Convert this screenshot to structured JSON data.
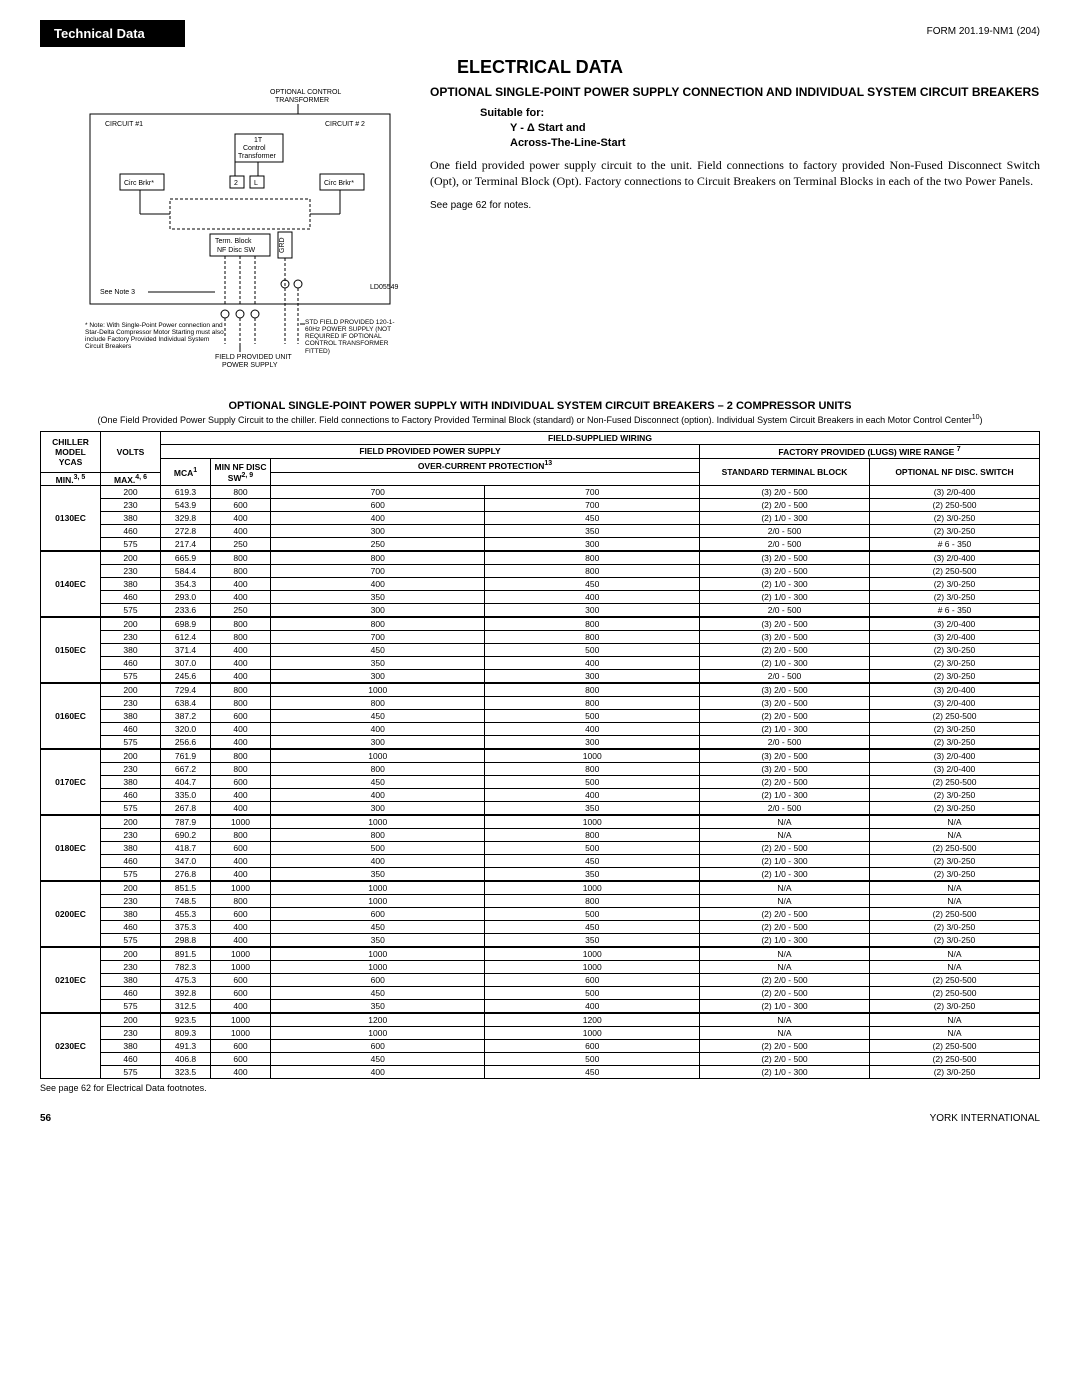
{
  "header": {
    "badge": "Technical Data",
    "form_no": "FORM 201.19-NM1 (204)"
  },
  "page_title": "ELECTRICAL DATA",
  "diagram": {
    "optional_ctrl": "OPTIONAL CONTROL\nTRANSFORMER",
    "circuit1": "CIRCUIT #1",
    "circuit2": "CIRCUIT # 2",
    "ctrl_trans": "1T\nControl\nTransformer",
    "circ_brkr": "Circ Brkr*",
    "term_block": "Term. Block\nNF Disc SW",
    "grd": "GRD",
    "see_note3": "See Note 3",
    "ld": "LD05549",
    "note_star": "* Note: With Single-Point Power connection and Star-Delta Compressor Motor Starting must also include Factory Provided Individual System Circuit Breakers",
    "field_unit": "FIELD PROVIDED UNIT\nPOWER SUPPLY",
    "std_field": "STD FIELD PROVIDED 120-1-60Hz POWER SUPPLY (NOT REQUIRED IF OPTIONAL CONTROL TRANSFORMER FITTED)",
    "num2": "2",
    "numL": "L"
  },
  "section": {
    "title": "OPTIONAL SINGLE-POINT POWER SUPPLY CONNECTION AND INDIVIDUAL SYSTEM CIRCUIT BREAKERS",
    "suitable": "Suitable for:",
    "y_start": "Y - Δ Start and",
    "atl": "Across-The-Line-Start",
    "body": "One field provided power supply circuit to the unit. Field connections to factory provided Non-Fused Disconnect Switch (Opt), or Terminal Block (Opt). Factory connections to Circuit Breakers on Terminal Blocks in each of the two Power Panels.",
    "see_page": "See page 62 for notes."
  },
  "table": {
    "title": "OPTIONAL SINGLE-POINT POWER SUPPLY WITH INDIVIDUAL SYSTEM CIRCUIT BREAKERS – 2 COMPRESSOR UNITS",
    "sub": "(One Field Provided Power Supply Circuit to the chiller. Field connections to Factory Provided Terminal Block (standard) or Non-Fused Disconnect (option). Individual System Circuit Breakers in each Motor Control Center",
    "sup10": "10",
    "headers": {
      "chiller": "CHILLER MODEL YCAS",
      "volts": "VOLTS",
      "fsw": "FIELD-SUPPLIED WIRING",
      "fpps": "FIELD PROVIDED POWER SUPPLY",
      "lugs": "FACTORY PROVIDED (LUGS) WIRE RANGE",
      "lugs_sup": "7",
      "mca": "MCA",
      "mca_sup": "1",
      "minnf": "MIN NF DISC SW",
      "minnf_sup": "2, 9",
      "ocp": "OVER-CURRENT PROTECTION",
      "ocp_sup": "13",
      "min": "MIN.",
      "min_sup": "3, 5",
      "max": "MAX.",
      "max_sup": "4, 6",
      "std_tb": "STANDARD TERMINAL BLOCK",
      "opt_nf": "OPTIONAL NF DISC. SWITCH"
    },
    "models": [
      {
        "model": "0130EC",
        "rows": [
          [
            "200",
            "619.3",
            "800",
            "700",
            "700",
            "(3) 2/0 - 500",
            "(3) 2/0-400"
          ],
          [
            "230",
            "543.9",
            "600",
            "600",
            "700",
            "(2) 2/0 - 500",
            "(2) 250-500"
          ],
          [
            "380",
            "329.8",
            "400",
            "400",
            "450",
            "(2) 1/0 - 300",
            "(2) 3/0-250"
          ],
          [
            "460",
            "272.8",
            "400",
            "300",
            "350",
            "2/0 - 500",
            "(2) 3/0-250"
          ],
          [
            "575",
            "217.4",
            "250",
            "250",
            "300",
            "2/0 - 500",
            "# 6 - 350"
          ]
        ]
      },
      {
        "model": "0140EC",
        "rows": [
          [
            "200",
            "665.9",
            "800",
            "800",
            "800",
            "(3) 2/0 - 500",
            "(3) 2/0-400"
          ],
          [
            "230",
            "584.4",
            "800",
            "700",
            "800",
            "(3) 2/0 - 500",
            "(2) 250-500"
          ],
          [
            "380",
            "354.3",
            "400",
            "400",
            "450",
            "(2) 1/0 - 300",
            "(2) 3/0-250"
          ],
          [
            "460",
            "293.0",
            "400",
            "350",
            "400",
            "(2) 1/0 - 300",
            "(2) 3/0-250"
          ],
          [
            "575",
            "233.6",
            "250",
            "300",
            "300",
            "2/0 - 500",
            "# 6 - 350"
          ]
        ]
      },
      {
        "model": "0150EC",
        "rows": [
          [
            "200",
            "698.9",
            "800",
            "800",
            "800",
            "(3) 2/0 - 500",
            "(3) 2/0-400"
          ],
          [
            "230",
            "612.4",
            "800",
            "700",
            "800",
            "(3) 2/0 - 500",
            "(3) 2/0-400"
          ],
          [
            "380",
            "371.4",
            "400",
            "450",
            "500",
            "(2) 2/0 - 500",
            "(2) 3/0-250"
          ],
          [
            "460",
            "307.0",
            "400",
            "350",
            "400",
            "(2) 1/0 - 300",
            "(2) 3/0-250"
          ],
          [
            "575",
            "245.6",
            "400",
            "300",
            "300",
            "2/0 - 500",
            "(2) 3/0-250"
          ]
        ]
      },
      {
        "model": "0160EC",
        "rows": [
          [
            "200",
            "729.4",
            "800",
            "1000",
            "800",
            "(3) 2/0 - 500",
            "(3) 2/0-400"
          ],
          [
            "230",
            "638.4",
            "800",
            "800",
            "800",
            "(3) 2/0 - 500",
            "(3) 2/0-400"
          ],
          [
            "380",
            "387.2",
            "600",
            "450",
            "500",
            "(2) 2/0 - 500",
            "(2) 250-500"
          ],
          [
            "460",
            "320.0",
            "400",
            "400",
            "400",
            "(2) 1/0 - 300",
            "(2) 3/0-250"
          ],
          [
            "575",
            "256.6",
            "400",
            "300",
            "300",
            "2/0  - 500",
            "(2) 3/0-250"
          ]
        ]
      },
      {
        "model": "0170EC",
        "rows": [
          [
            "200",
            "761.9",
            "800",
            "1000",
            "1000",
            "(3) 2/0 - 500",
            "(3) 2/0-400"
          ],
          [
            "230",
            "667.2",
            "800",
            "800",
            "800",
            "(3) 2/0 - 500",
            "(3) 2/0-400"
          ],
          [
            "380",
            "404.7",
            "600",
            "450",
            "500",
            "(2) 2/0 - 500",
            "(2) 250-500"
          ],
          [
            "460",
            "335.0",
            "400",
            "400",
            "400",
            "(2) 1/0 - 300",
            "(2) 3/0-250"
          ],
          [
            "575",
            "267.8",
            "400",
            "300",
            "350",
            "2/0 - 500",
            "(2) 3/0-250"
          ]
        ]
      },
      {
        "model": "0180EC",
        "rows": [
          [
            "200",
            "787.9",
            "1000",
            "1000",
            "1000",
            "N/A",
            "N/A"
          ],
          [
            "230",
            "690.2",
            "800",
            "800",
            "800",
            "N/A",
            "N/A"
          ],
          [
            "380",
            "418.7",
            "600",
            "500",
            "500",
            "(2) 2/0 - 500",
            "(2) 250-500"
          ],
          [
            "460",
            "347.0",
            "400",
            "400",
            "450",
            "(2) 1/0 - 300",
            "(2) 3/0-250"
          ],
          [
            "575",
            "276.8",
            "400",
            "350",
            "350",
            "(2) 1/0 - 300",
            "(2) 3/0-250"
          ]
        ]
      },
      {
        "model": "0200EC",
        "rows": [
          [
            "200",
            "851.5",
            "1000",
            "1000",
            "1000",
            "N/A",
            "N/A"
          ],
          [
            "230",
            "748.5",
            "800",
            "1000",
            "800",
            "N/A",
            "N/A"
          ],
          [
            "380",
            "455.3",
            "600",
            "600",
            "500",
            "(2) 2/0 - 500",
            "(2) 250-500"
          ],
          [
            "460",
            "375.3",
            "400",
            "450",
            "450",
            "(2) 2/0 - 500",
            "(2) 3/0-250"
          ],
          [
            "575",
            "298.8",
            "400",
            "350",
            "350",
            "(2) 1/0 - 300",
            "(2) 3/0-250"
          ]
        ]
      },
      {
        "model": "0210EC",
        "rows": [
          [
            "200",
            "891.5",
            "1000",
            "1000",
            "1000",
            "N/A",
            "N/A"
          ],
          [
            "230",
            "782.3",
            "1000",
            "1000",
            "1000",
            "N/A",
            "N/A"
          ],
          [
            "380",
            "475.3",
            "600",
            "600",
            "600",
            "(2) 2/0 - 500",
            "(2) 250-500"
          ],
          [
            "460",
            "392.8",
            "600",
            "450",
            "500",
            "(2) 2/0 - 500",
            "(2) 250-500"
          ],
          [
            "575",
            "312.5",
            "400",
            "350",
            "400",
            "(2) 1/0 - 300",
            "(2) 3/0-250"
          ]
        ]
      },
      {
        "model": "0230EC",
        "rows": [
          [
            "200",
            "923.5",
            "1000",
            "1200",
            "1200",
            "N/A",
            "N/A"
          ],
          [
            "230",
            "809.3",
            "1000",
            "1000",
            "1000",
            "N/A",
            "N/A"
          ],
          [
            "380",
            "491.3",
            "600",
            "600",
            "600",
            "(2) 2/0 - 500",
            "(2) 250-500"
          ],
          [
            "460",
            "406.8",
            "600",
            "450",
            "500",
            "(2) 2/0 - 500",
            "(2) 250-500"
          ],
          [
            "575",
            "323.5",
            "400",
            "400",
            "450",
            "(2) 1/0 - 300",
            "(2) 3/0-250"
          ]
        ]
      }
    ],
    "footnote": "See page 62 for Electrical Data footnotes."
  },
  "footer": {
    "page": "56",
    "brand": "YORK INTERNATIONAL"
  }
}
